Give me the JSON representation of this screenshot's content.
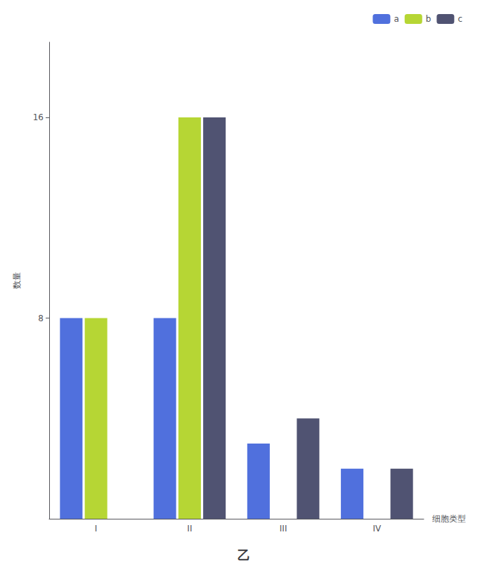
{
  "chart_data": {
    "type": "bar",
    "title": "乙",
    "categories": [
      "I",
      "II",
      "III",
      "IV"
    ],
    "series": [
      {
        "name": "a",
        "values": [
          8,
          8,
          3,
          2
        ]
      },
      {
        "name": "b",
        "values": [
          8,
          16,
          0,
          0
        ]
      },
      {
        "name": "c",
        "values": [
          0,
          16,
          4,
          2
        ]
      }
    ],
    "xlabel": "细胞类型",
    "ylabel": "数量",
    "ylim": [
      0,
      19
    ],
    "yticks": [
      8,
      16
    ],
    "grid": false,
    "legend": "upper right"
  }
}
